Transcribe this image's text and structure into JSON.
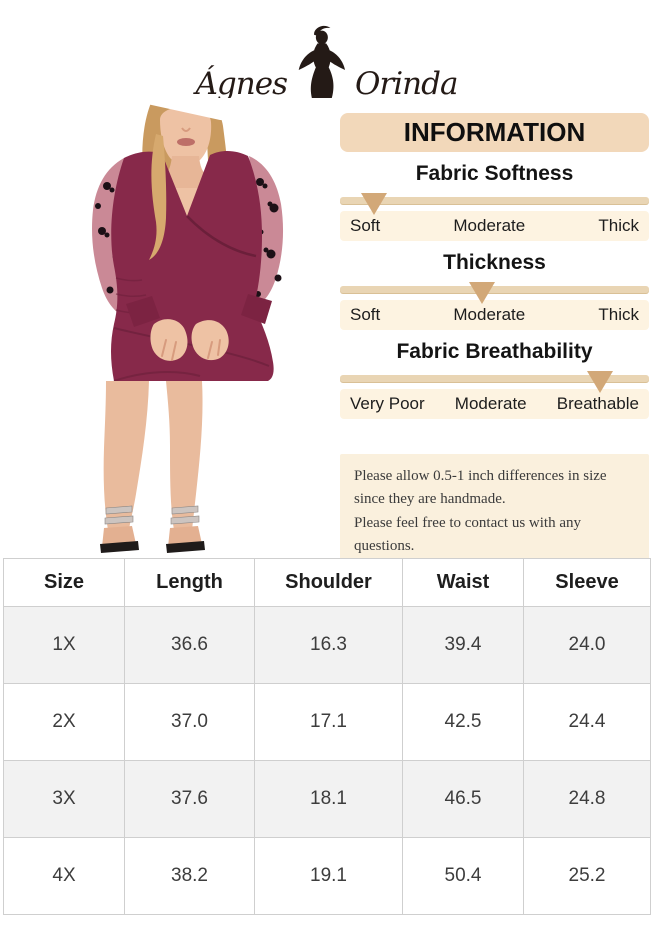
{
  "brand": {
    "name_left": "Ágnes",
    "name_right": "Orinda",
    "logo_icon": "woman-silhouette-icon"
  },
  "photo": {
    "alt": "Model wearing burgundy knee-length wrap dress with sheer mesh sleeves patterned with black flowers and silver strappy heels"
  },
  "info_panel": {
    "title": "INFORMATION",
    "sliders": [
      {
        "title": "Fabric Softness",
        "labels": [
          "Soft",
          "Moderate",
          "Thick"
        ],
        "value": "Soft",
        "pointer_percent": 11
      },
      {
        "title": "Thickness",
        "labels": [
          "Soft",
          "Moderate",
          "Thick"
        ],
        "value": "Moderate",
        "pointer_percent": 46
      },
      {
        "title": "Fabric Breathability",
        "labels": [
          "Very Poor",
          "Moderate",
          "Breathable"
        ],
        "value": "Breathable",
        "pointer_percent": 84
      }
    ]
  },
  "note": {
    "lines": [
      "Please allow 0.5-1 inch differences in size since they are handmade.",
      "Please feel free to contact us with any questions."
    ]
  },
  "size_chart": {
    "headers": [
      "Size",
      "Length",
      "Shoulder",
      "Waist",
      "Sleeve"
    ],
    "rows": [
      [
        "1X",
        "36.6",
        "16.3",
        "39.4",
        "24.0"
      ],
      [
        "2X",
        "37.0",
        "17.1",
        "42.5",
        "24.4"
      ],
      [
        "3X",
        "37.6",
        "18.1",
        "46.5",
        "24.8"
      ],
      [
        "4X",
        "38.2",
        "19.1",
        "50.4",
        "25.2"
      ]
    ]
  },
  "colors": {
    "info_title_bg": "#f2d8ba",
    "slider_label_bg": "#fdf3e1",
    "slider_track": "#e9d5b4",
    "pointer": "#d2a878",
    "note_bg": "#faf0dd",
    "dress_burgundy": "#87294a",
    "mesh_sleeve": "#c57f8d",
    "table_alt_row": "#f2f2f2",
    "table_border": "#cfcfcf"
  }
}
